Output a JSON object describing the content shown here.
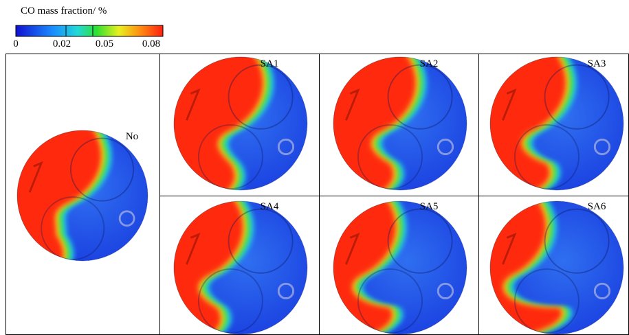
{
  "colorbar": {
    "title": "CO mass fraction/ %",
    "ticks": [
      "0",
      "0.02",
      "0.05",
      "0.08"
    ]
  },
  "panels": [
    {
      "label": "No"
    },
    {
      "label": "SA1"
    },
    {
      "label": "SA2"
    },
    {
      "label": "SA3"
    },
    {
      "label": "SA4"
    },
    {
      "label": "SA5"
    },
    {
      "label": "SA6"
    }
  ]
}
